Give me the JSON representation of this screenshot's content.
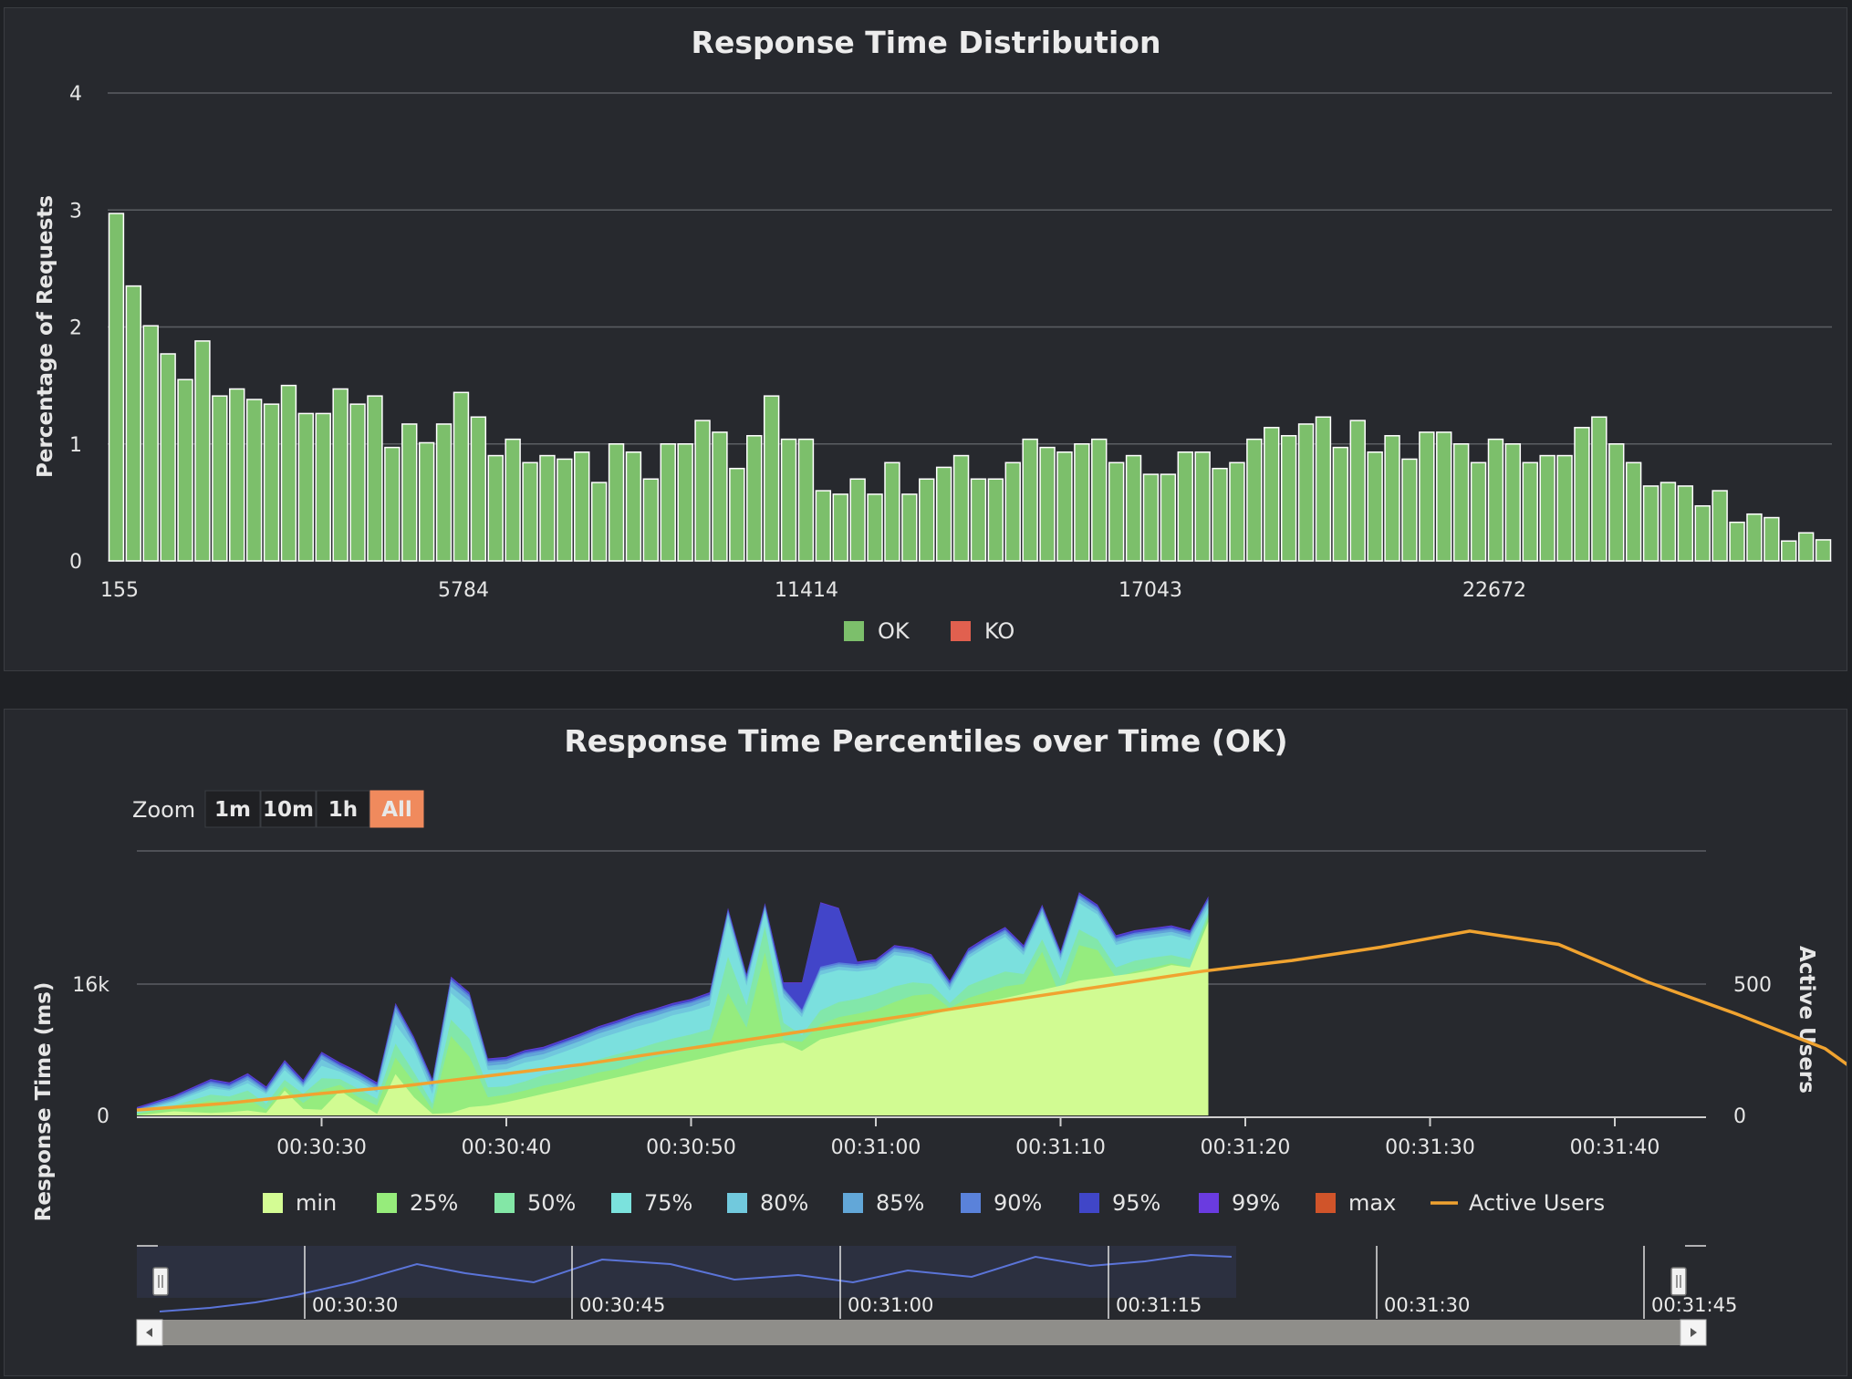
{
  "dist_chart": {
    "title": "Response Time Distribution",
    "ylabel": "Percentage of Requests",
    "yticks": [
      "0",
      "1",
      "2",
      "3",
      "4"
    ],
    "xticks": [
      "155",
      "5784",
      "11414",
      "17043",
      "22672"
    ],
    "legend": [
      {
        "label": "OK",
        "color": "#7cbf6b"
      },
      {
        "label": "KO",
        "color": "#e1604f"
      }
    ]
  },
  "pct_chart": {
    "title": "Response Time Percentiles over Time (OK)",
    "zoom_label": "Zoom",
    "zoom_buttons": [
      {
        "label": "1m",
        "active": false
      },
      {
        "label": "10m",
        "active": false
      },
      {
        "label": "1h",
        "active": false
      },
      {
        "label": "All",
        "active": true
      }
    ],
    "ylabel_left": "Response Time (ms)",
    "ylabel_right": "Active Users",
    "yticks_left": [
      "0",
      "16k"
    ],
    "yticks_right": [
      "0",
      "500"
    ],
    "xticks": [
      "00:30:30",
      "00:30:40",
      "00:30:50",
      "00:31:00",
      "00:31:10",
      "00:31:20",
      "00:31:30",
      "00:31:40"
    ],
    "legend": [
      {
        "label": "min",
        "color": "#d4fc94"
      },
      {
        "label": "25%",
        "color": "#96ec7b"
      },
      {
        "label": "50%",
        "color": "#83e7a6"
      },
      {
        "label": "75%",
        "color": "#7be2dd"
      },
      {
        "label": "80%",
        "color": "#71c9dd"
      },
      {
        "label": "85%",
        "color": "#62a7d8"
      },
      {
        "label": "90%",
        "color": "#5a82da"
      },
      {
        "label": "95%",
        "color": "#4046c8"
      },
      {
        "label": "99%",
        "color": "#6a3be0"
      },
      {
        "label": "max",
        "color": "#d0542a"
      },
      {
        "label": "Active Users",
        "color": "#f0a330"
      }
    ],
    "navigator_ticks": [
      "00:30:30",
      "00:30:45",
      "00:31:00",
      "00:31:15",
      "00:31:30",
      "00:31:45"
    ]
  },
  "chart_data": [
    {
      "type": "bar",
      "title": "Response Time Distribution",
      "xlabel": "",
      "ylabel": "Percentage of Requests",
      "ylim": [
        0,
        4
      ],
      "grid": true,
      "legend_placement": "bottom",
      "x_tick_labels": [
        "155",
        "5784",
        "11414",
        "17043",
        "22672"
      ],
      "series": [
        {
          "name": "OK",
          "color": "#7cbf6b",
          "values": [
            2.97,
            2.35,
            2.01,
            1.77,
            1.55,
            1.88,
            1.41,
            1.47,
            1.38,
            1.34,
            1.5,
            1.26,
            1.26,
            1.47,
            1.34,
            1.41,
            0.97,
            1.17,
            1.01,
            1.17,
            1.44,
            1.23,
            0.9,
            1.04,
            0.84,
            0.9,
            0.87,
            0.93,
            0.67,
            1.0,
            0.93,
            0.7,
            1.0,
            1.0,
            1.2,
            1.1,
            0.79,
            1.07,
            1.41,
            1.04,
            1.04,
            0.6,
            0.57,
            0.7,
            0.57,
            0.84,
            0.57,
            0.7,
            0.8,
            0.9,
            0.7,
            0.7,
            0.84,
            1.04,
            0.97,
            0.93,
            1.0,
            1.04,
            0.84,
            0.9,
            0.74,
            0.74,
            0.93,
            0.93,
            0.79,
            0.84,
            1.04,
            1.14,
            1.07,
            1.17,
            1.23,
            0.97,
            1.2,
            0.93,
            1.07,
            0.87,
            1.1,
            1.1,
            1.0,
            0.84,
            1.04,
            1.0,
            0.84,
            0.9,
            0.9,
            1.14,
            1.23,
            1.0,
            0.84,
            0.64,
            0.67,
            0.64,
            0.47,
            0.6,
            0.33,
            0.4,
            0.37,
            0.17,
            0.24,
            0.18
          ]
        },
        {
          "name": "KO",
          "color": "#e1604f",
          "values": []
        }
      ]
    },
    {
      "type": "area",
      "title": "Response Time Percentiles over Time (OK)",
      "xlabel": "",
      "ylabel": "Response Time (ms)",
      "y2label": "Active Users",
      "ylim": [
        0,
        32000
      ],
      "y2lim": [
        0,
        1000
      ],
      "x_tick_labels": [
        "00:30:30",
        "00:30:40",
        "00:30:50",
        "00:31:00",
        "00:31:10",
        "00:31:20",
        "00:31:30",
        "00:31:40"
      ],
      "legend_placement": "bottom",
      "x_seconds_from_00_30_20": [
        0,
        2,
        4,
        5,
        6,
        7,
        8,
        9,
        10,
        11,
        12,
        13,
        14,
        15,
        16,
        17,
        18,
        19,
        20,
        21,
        22,
        23,
        24,
        25,
        26,
        27,
        28,
        29,
        30,
        31,
        32,
        33,
        34,
        35,
        36,
        37,
        38,
        39,
        40,
        41,
        42,
        43,
        44,
        45,
        46,
        47,
        48,
        49,
        50,
        51,
        52,
        53,
        54,
        55,
        56,
        57,
        58
      ],
      "series": [
        {
          "name": "min",
          "color": "#d4fc94",
          "values": [
            0,
            500,
            300,
            400,
            600,
            300,
            3000,
            800,
            700,
            3000,
            1500,
            200,
            5000,
            2200,
            200,
            300,
            1000,
            1200,
            1600,
            2100,
            2600,
            3100,
            3600,
            4100,
            4600,
            5100,
            5600,
            6100,
            6600,
            7100,
            7600,
            8100,
            8500,
            8800,
            7800,
            9200,
            9700,
            10200,
            10700,
            11200,
            11700,
            12200,
            12700,
            13200,
            13700,
            14200,
            14700,
            15200,
            15700,
            16300,
            16600,
            16900,
            17200,
            17600,
            18200,
            17900,
            23400
          ]
        },
        {
          "name": "25%",
          "color": "#96ec7b",
          "values": [
            200,
            900,
            1800,
            1500,
            2000,
            700,
            3500,
            1500,
            3100,
            3700,
            2200,
            1200,
            7000,
            4000,
            700,
            9600,
            7100,
            2200,
            2500,
            3000,
            3600,
            4000,
            4600,
            5200,
            5600,
            6300,
            7000,
            7400,
            8000,
            8500,
            14800,
            10600,
            19700,
            9100,
            8900,
            11000,
            11900,
            12300,
            12800,
            13700,
            14500,
            14700,
            13000,
            14200,
            14900,
            15600,
            15900,
            19800,
            14300,
            20600,
            20000,
            16700,
            17400,
            17900,
            18400,
            17900,
            24000
          ]
        },
        {
          "name": "50%",
          "color": "#83e7a6",
          "values": [
            300,
            1200,
            2500,
            2300,
            3000,
            1400,
            4300,
            2600,
            4500,
            4400,
            3200,
            2000,
            8700,
            5200,
            1400,
            11600,
            9300,
            3400,
            3500,
            4100,
            4900,
            5400,
            6000,
            6800,
            7400,
            8000,
            8700,
            9300,
            9800,
            10400,
            19200,
            13300,
            22900,
            11200,
            9700,
            12700,
            13700,
            14100,
            14700,
            15600,
            16100,
            15900,
            13600,
            15700,
            16600,
            17400,
            17100,
            21300,
            16500,
            22500,
            21300,
            17900,
            18700,
            19100,
            19400,
            18900,
            24500
          ]
        },
        {
          "name": "75%",
          "color": "#7be2dd",
          "values": [
            500,
            1600,
            3300,
            3000,
            3900,
            2600,
            5500,
            3400,
            6000,
            5300,
            4200,
            2800,
            11000,
            8000,
            2600,
            14800,
            12900,
            5500,
            5600,
            6400,
            6800,
            7600,
            8400,
            9300,
            10000,
            10700,
            11300,
            12100,
            12600,
            13300,
            23500,
            15700,
            24600,
            14300,
            11900,
            17000,
            17600,
            17400,
            17700,
            19400,
            19100,
            18300,
            15100,
            19000,
            20400,
            21600,
            19400,
            24300,
            18700,
            25700,
            24300,
            20600,
            21200,
            21500,
            21800,
            21200,
            25200
          ]
        },
        {
          "name": "80%",
          "color": "#71c9dd",
          "values": [
            600,
            1800,
            3600,
            3200,
            4300,
            2800,
            5900,
            3600,
            6800,
            5600,
            4500,
            3200,
            12500,
            8500,
            3400,
            15600,
            13800,
            6000,
            6200,
            7000,
            7400,
            8200,
            9000,
            9900,
            10600,
            11400,
            12000,
            12700,
            13200,
            14000,
            24300,
            16200,
            24900,
            14800,
            12300,
            17500,
            18000,
            17800,
            18100,
            19800,
            19500,
            18700,
            15500,
            19400,
            20800,
            22000,
            19800,
            24700,
            19100,
            26200,
            24700,
            21000,
            21600,
            21900,
            22200,
            21600,
            25700
          ]
        },
        {
          "name": "85%",
          "color": "#62a7d8",
          "values": [
            700,
            2000,
            3900,
            3500,
            4600,
            3000,
            6200,
            3800,
            7200,
            5900,
            4800,
            3500,
            13000,
            8900,
            3800,
            16200,
            14300,
            6400,
            6600,
            7400,
            7800,
            8600,
            9400,
            10300,
            11000,
            11800,
            12400,
            13100,
            13600,
            14400,
            24600,
            16500,
            25200,
            15200,
            12600,
            17800,
            18300,
            18100,
            18400,
            20100,
            19800,
            19000,
            15800,
            19700,
            21100,
            22300,
            20100,
            25000,
            19400,
            26500,
            25000,
            21300,
            21900,
            22200,
            22500,
            21900,
            26000
          ]
        },
        {
          "name": "90%",
          "color": "#5a82da",
          "values": [
            800,
            2200,
            4100,
            3700,
            4800,
            3200,
            6400,
            4000,
            7400,
            6100,
            5000,
            3700,
            13300,
            9200,
            4100,
            16500,
            14600,
            6600,
            6800,
            7600,
            8000,
            8800,
            9600,
            10500,
            11200,
            12000,
            12600,
            13300,
            13800,
            14600,
            24800,
            16800,
            25400,
            15400,
            12800,
            18000,
            18500,
            18300,
            18600,
            20300,
            20000,
            19200,
            16000,
            19900,
            21300,
            22500,
            20300,
            25200,
            19600,
            26700,
            25200,
            21500,
            22100,
            22400,
            22700,
            22100,
            26200
          ]
        },
        {
          "name": "95%",
          "color": "#4046c8",
          "values": [
            900,
            2300,
            4300,
            3900,
            5000,
            3400,
            6600,
            4200,
            7600,
            6300,
            5200,
            3900,
            13500,
            9400,
            4300,
            16700,
            14800,
            6800,
            7000,
            7800,
            8200,
            9000,
            9800,
            10700,
            11400,
            12200,
            12800,
            13500,
            14000,
            14800,
            25000,
            17000,
            25600,
            16000,
            16000,
            25700,
            25000,
            18500,
            18800,
            20500,
            20200,
            19400,
            16200,
            20100,
            21500,
            22700,
            20500,
            25400,
            19800,
            26900,
            25400,
            21700,
            22300,
            22600,
            22900,
            22300,
            26400
          ]
        },
        {
          "name": "99%",
          "color": "#6a3be0",
          "values": [
            1000,
            2400,
            4400,
            4000,
            5100,
            3500,
            6700,
            4300,
            7700,
            6400,
            5300,
            4000,
            13600,
            9500,
            4400,
            16800,
            14900,
            6900,
            7100,
            7900,
            8300,
            9100,
            9900,
            10800,
            11500,
            12300,
            12900,
            13600,
            14100,
            14900,
            25100,
            17100,
            25700,
            16100,
            16100,
            25800,
            25100,
            18600,
            18900,
            20600,
            20300,
            19500,
            16300,
            20200,
            21600,
            22800,
            20600,
            25500,
            19900,
            27000,
            25500,
            21800,
            22400,
            22700,
            23000,
            22400,
            26500
          ]
        },
        {
          "name": "max",
          "color": "#d0542a",
          "values": []
        },
        {
          "name": "Active Users",
          "color": "#f0a330",
          "axis": "right",
          "x_seconds_from_00_30_20": [
            0,
            5,
            10,
            15,
            20,
            25,
            30,
            35,
            40,
            45,
            50,
            55,
            60,
            65,
            70,
            75,
            80,
            85,
            90,
            95,
            100
          ],
          "values": [
            20,
            45,
            80,
            110,
            150,
            190,
            240,
            290,
            340,
            390,
            440,
            490,
            540,
            580,
            630,
            690,
            640,
            500,
            380,
            250,
            10
          ]
        }
      ]
    }
  ]
}
